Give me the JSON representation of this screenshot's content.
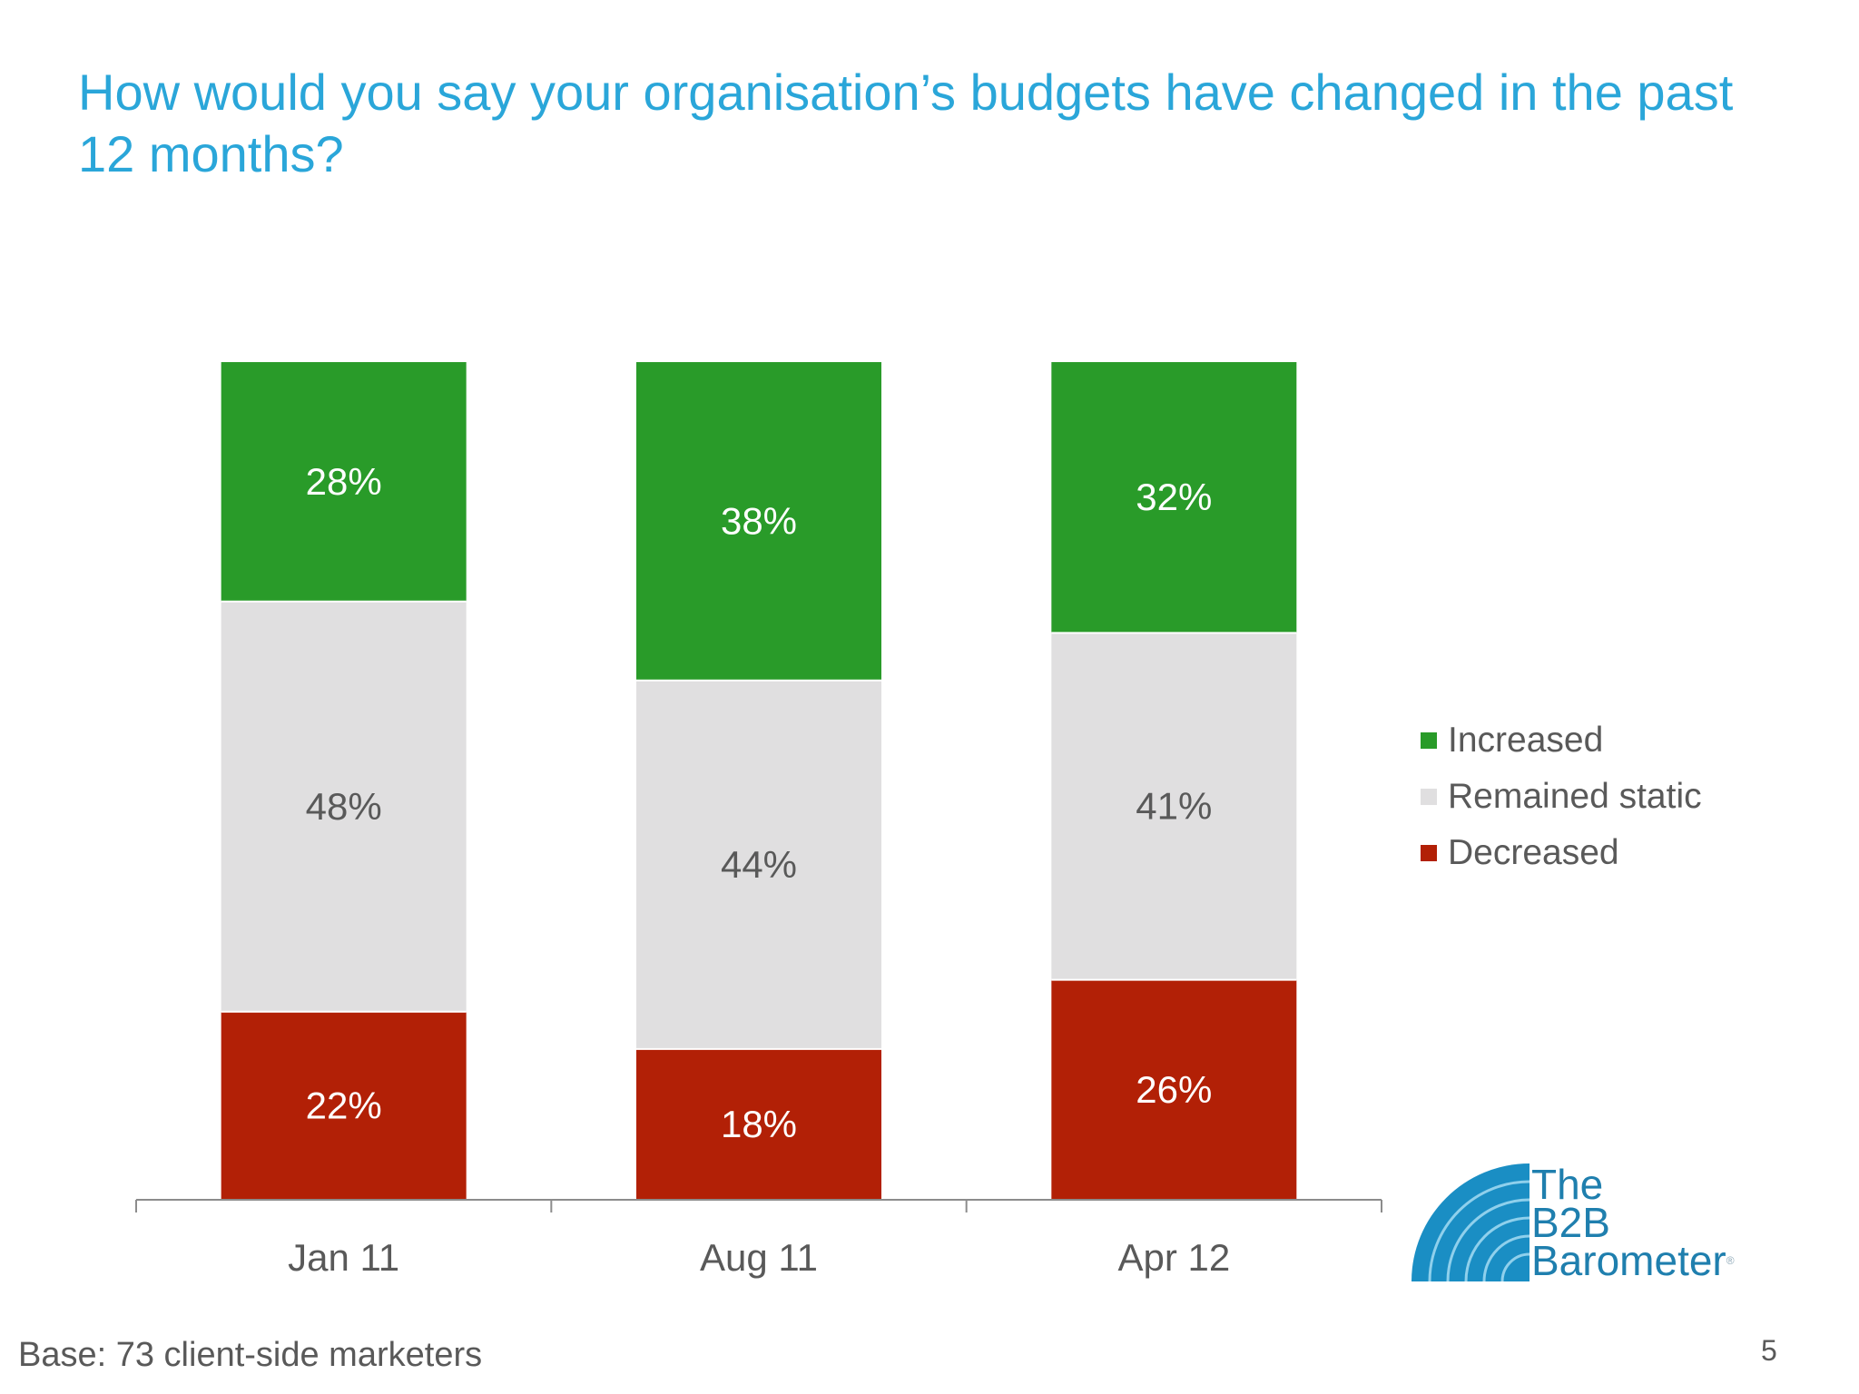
{
  "slide": {
    "title": "How would you say your organisation’s budgets have changed in the past 12 months?",
    "footnote": "Base: 73 client-side marketers",
    "page_number": "5",
    "logo_text_line1": "The",
    "logo_text_line2": "B2B",
    "logo_text_line3": "Barometer",
    "logo_mark": "®"
  },
  "chart_data": {
    "type": "bar",
    "stacked": true,
    "percent_stacked": true,
    "categories": [
      "Jan 11",
      "Aug 11",
      "Apr 12"
    ],
    "series": [
      {
        "name": "Decreased",
        "values": [
          22,
          18,
          26
        ],
        "color": "#b22006",
        "label_color": "#ffffff"
      },
      {
        "name": "Remained static",
        "values": [
          48,
          44,
          41
        ],
        "color": "#e0dfe0",
        "label_color": "#595959"
      },
      {
        "name": "Increased",
        "values": [
          28,
          38,
          32
        ],
        "color": "#299b29",
        "label_color": "#ffffff"
      }
    ],
    "data_labels": [
      [
        "22%",
        "18%",
        "26%"
      ],
      [
        "48%",
        "44%",
        "41%"
      ],
      [
        "28%",
        "38%",
        "32%"
      ]
    ],
    "legend": {
      "position": "right",
      "entries": [
        "Increased",
        "Remained static",
        "Decreased"
      ]
    },
    "grid": false,
    "ylabel": "",
    "xlabel": ""
  }
}
